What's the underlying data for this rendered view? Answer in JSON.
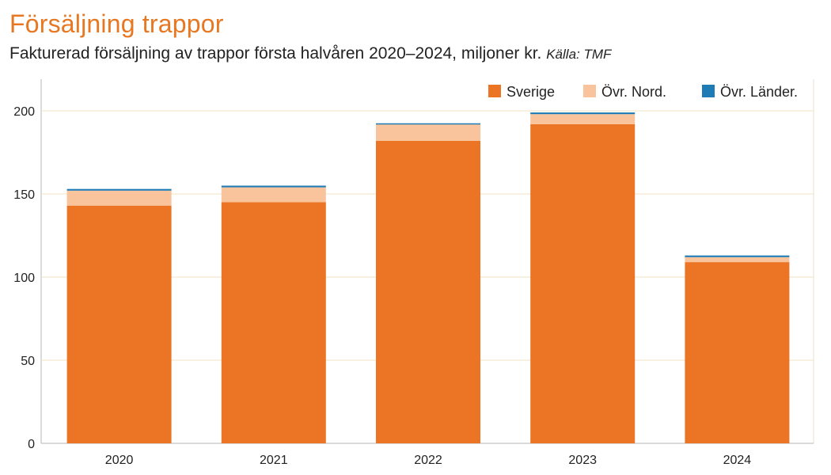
{
  "title": "Försäljning trappor",
  "subtitle": "Fakturerad försäljning av trappor första halvåren 2020–2024, miljoner kr.",
  "source": "Källa: TMF",
  "chart_data": {
    "type": "bar",
    "stacked": true,
    "categories": [
      "2020",
      "2021",
      "2022",
      "2023",
      "2024"
    ],
    "series": [
      {
        "name": "Sverige",
        "color": "#ec7525",
        "values": [
          143,
          145,
          182,
          192,
          109
        ]
      },
      {
        "name": "Övr. Nord.",
        "color": "#f9c39c",
        "values": [
          9,
          9,
          10,
          6,
          3
        ]
      },
      {
        "name": "Övr. Länder.",
        "color": "#1f7bb5",
        "values": [
          1,
          1,
          0.5,
          1,
          1
        ]
      }
    ],
    "yticks": [
      "0",
      "50",
      "100",
      "150",
      "200"
    ],
    "ylim": [
      0,
      210
    ],
    "xlabel": "",
    "ylabel": "",
    "grid": true,
    "legend_position": "top-right"
  }
}
